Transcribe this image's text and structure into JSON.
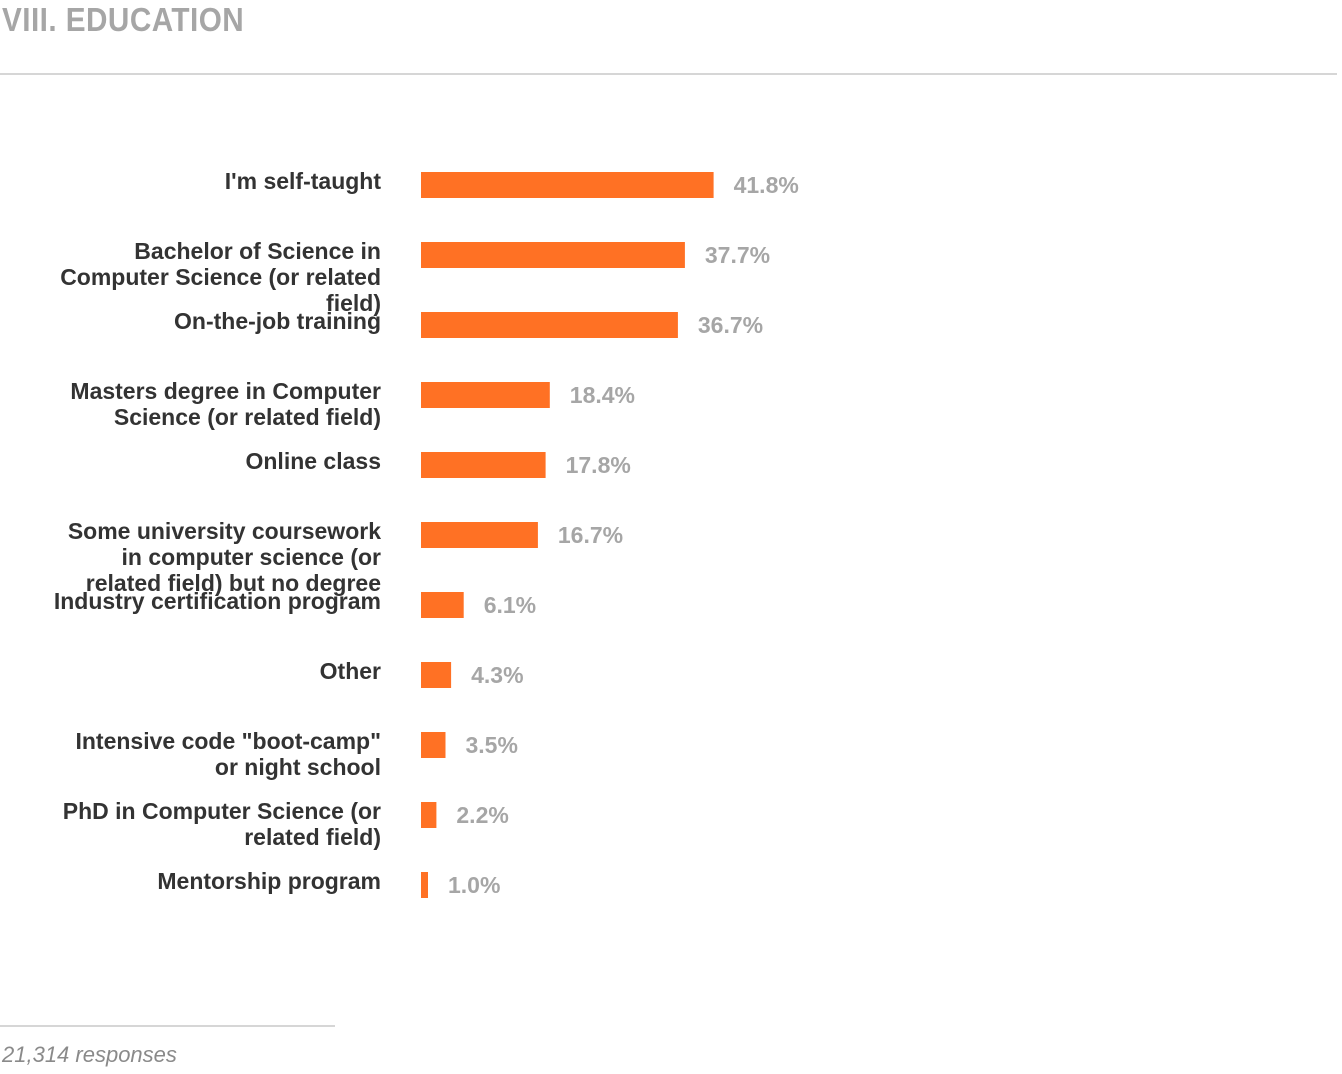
{
  "header": {
    "title": "VIII. EDUCATION"
  },
  "footer": {
    "note": "21,314 responses"
  },
  "colors": {
    "bar": "#ff7124",
    "category_text": "#333333",
    "value_text": "#a6a6a6"
  },
  "chart_data": {
    "type": "bar",
    "orientation": "horizontal",
    "title": "",
    "xlabel": "",
    "ylabel": "",
    "grid": false,
    "categories": [
      [
        "I'm self-taught"
      ],
      [
        "Bachelor of Science in",
        "Computer Science (or related",
        "field)"
      ],
      [
        "On-the-job training"
      ],
      [
        "Masters degree in Computer",
        "Science (or related field)"
      ],
      [
        "Online class"
      ],
      [
        "Some university coursework",
        "in computer science (or",
        "related field) but no degree"
      ],
      [
        "Industry certification program"
      ],
      [
        "Other"
      ],
      [
        "Intensive code \"boot-camp\"",
        "or night school"
      ],
      [
        "PhD in Computer Science (or",
        "related field)"
      ],
      [
        "Mentorship program"
      ]
    ],
    "values": [
      41.8,
      37.7,
      36.7,
      18.4,
      17.8,
      16.7,
      6.1,
      4.3,
      3.5,
      2.2,
      1.0
    ],
    "value_labels": [
      "41.8%",
      "37.7%",
      "36.7%",
      "18.4%",
      "17.8%",
      "16.7%",
      "6.1%",
      "4.3%",
      "3.5%",
      "2.2%",
      "1.0%"
    ],
    "unit": "%"
  }
}
